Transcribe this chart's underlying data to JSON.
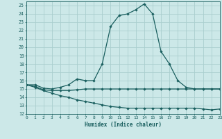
{
  "xlabel": "Humidex (Indice chaleur)",
  "bg_color": "#cce8e8",
  "grid_color": "#aacece",
  "line_color": "#1a5f5f",
  "xlim": [
    0,
    23
  ],
  "ylim": [
    12,
    25.5
  ],
  "yticks": [
    12,
    13,
    14,
    15,
    16,
    17,
    18,
    19,
    20,
    21,
    22,
    23,
    24,
    25
  ],
  "xticks": [
    0,
    1,
    2,
    3,
    4,
    5,
    6,
    7,
    8,
    9,
    10,
    11,
    12,
    13,
    14,
    15,
    16,
    17,
    18,
    19,
    20,
    21,
    22,
    23
  ],
  "series1": [
    15.5,
    15.5,
    15.1,
    15.0,
    15.2,
    15.5,
    16.2,
    16.0,
    16.0,
    18.0,
    22.5,
    23.8,
    24.0,
    24.5,
    25.2,
    24.0,
    19.5,
    18.0,
    16.0,
    15.2,
    15.0,
    15.0,
    15.0,
    15.0
  ],
  "series2": [
    15.5,
    15.3,
    14.9,
    14.8,
    14.8,
    14.8,
    14.9,
    15.0,
    15.0,
    15.0,
    15.0,
    15.0,
    15.0,
    15.0,
    15.0,
    15.0,
    15.0,
    15.0,
    15.0,
    15.0,
    15.0,
    15.0,
    15.0,
    15.0
  ],
  "series3": [
    15.5,
    15.2,
    14.8,
    14.5,
    14.2,
    14.0,
    13.7,
    13.5,
    13.3,
    13.1,
    12.9,
    12.8,
    12.7,
    12.7,
    12.7,
    12.7,
    12.7,
    12.7,
    12.7,
    12.7,
    12.7,
    12.6,
    12.5,
    12.6
  ]
}
